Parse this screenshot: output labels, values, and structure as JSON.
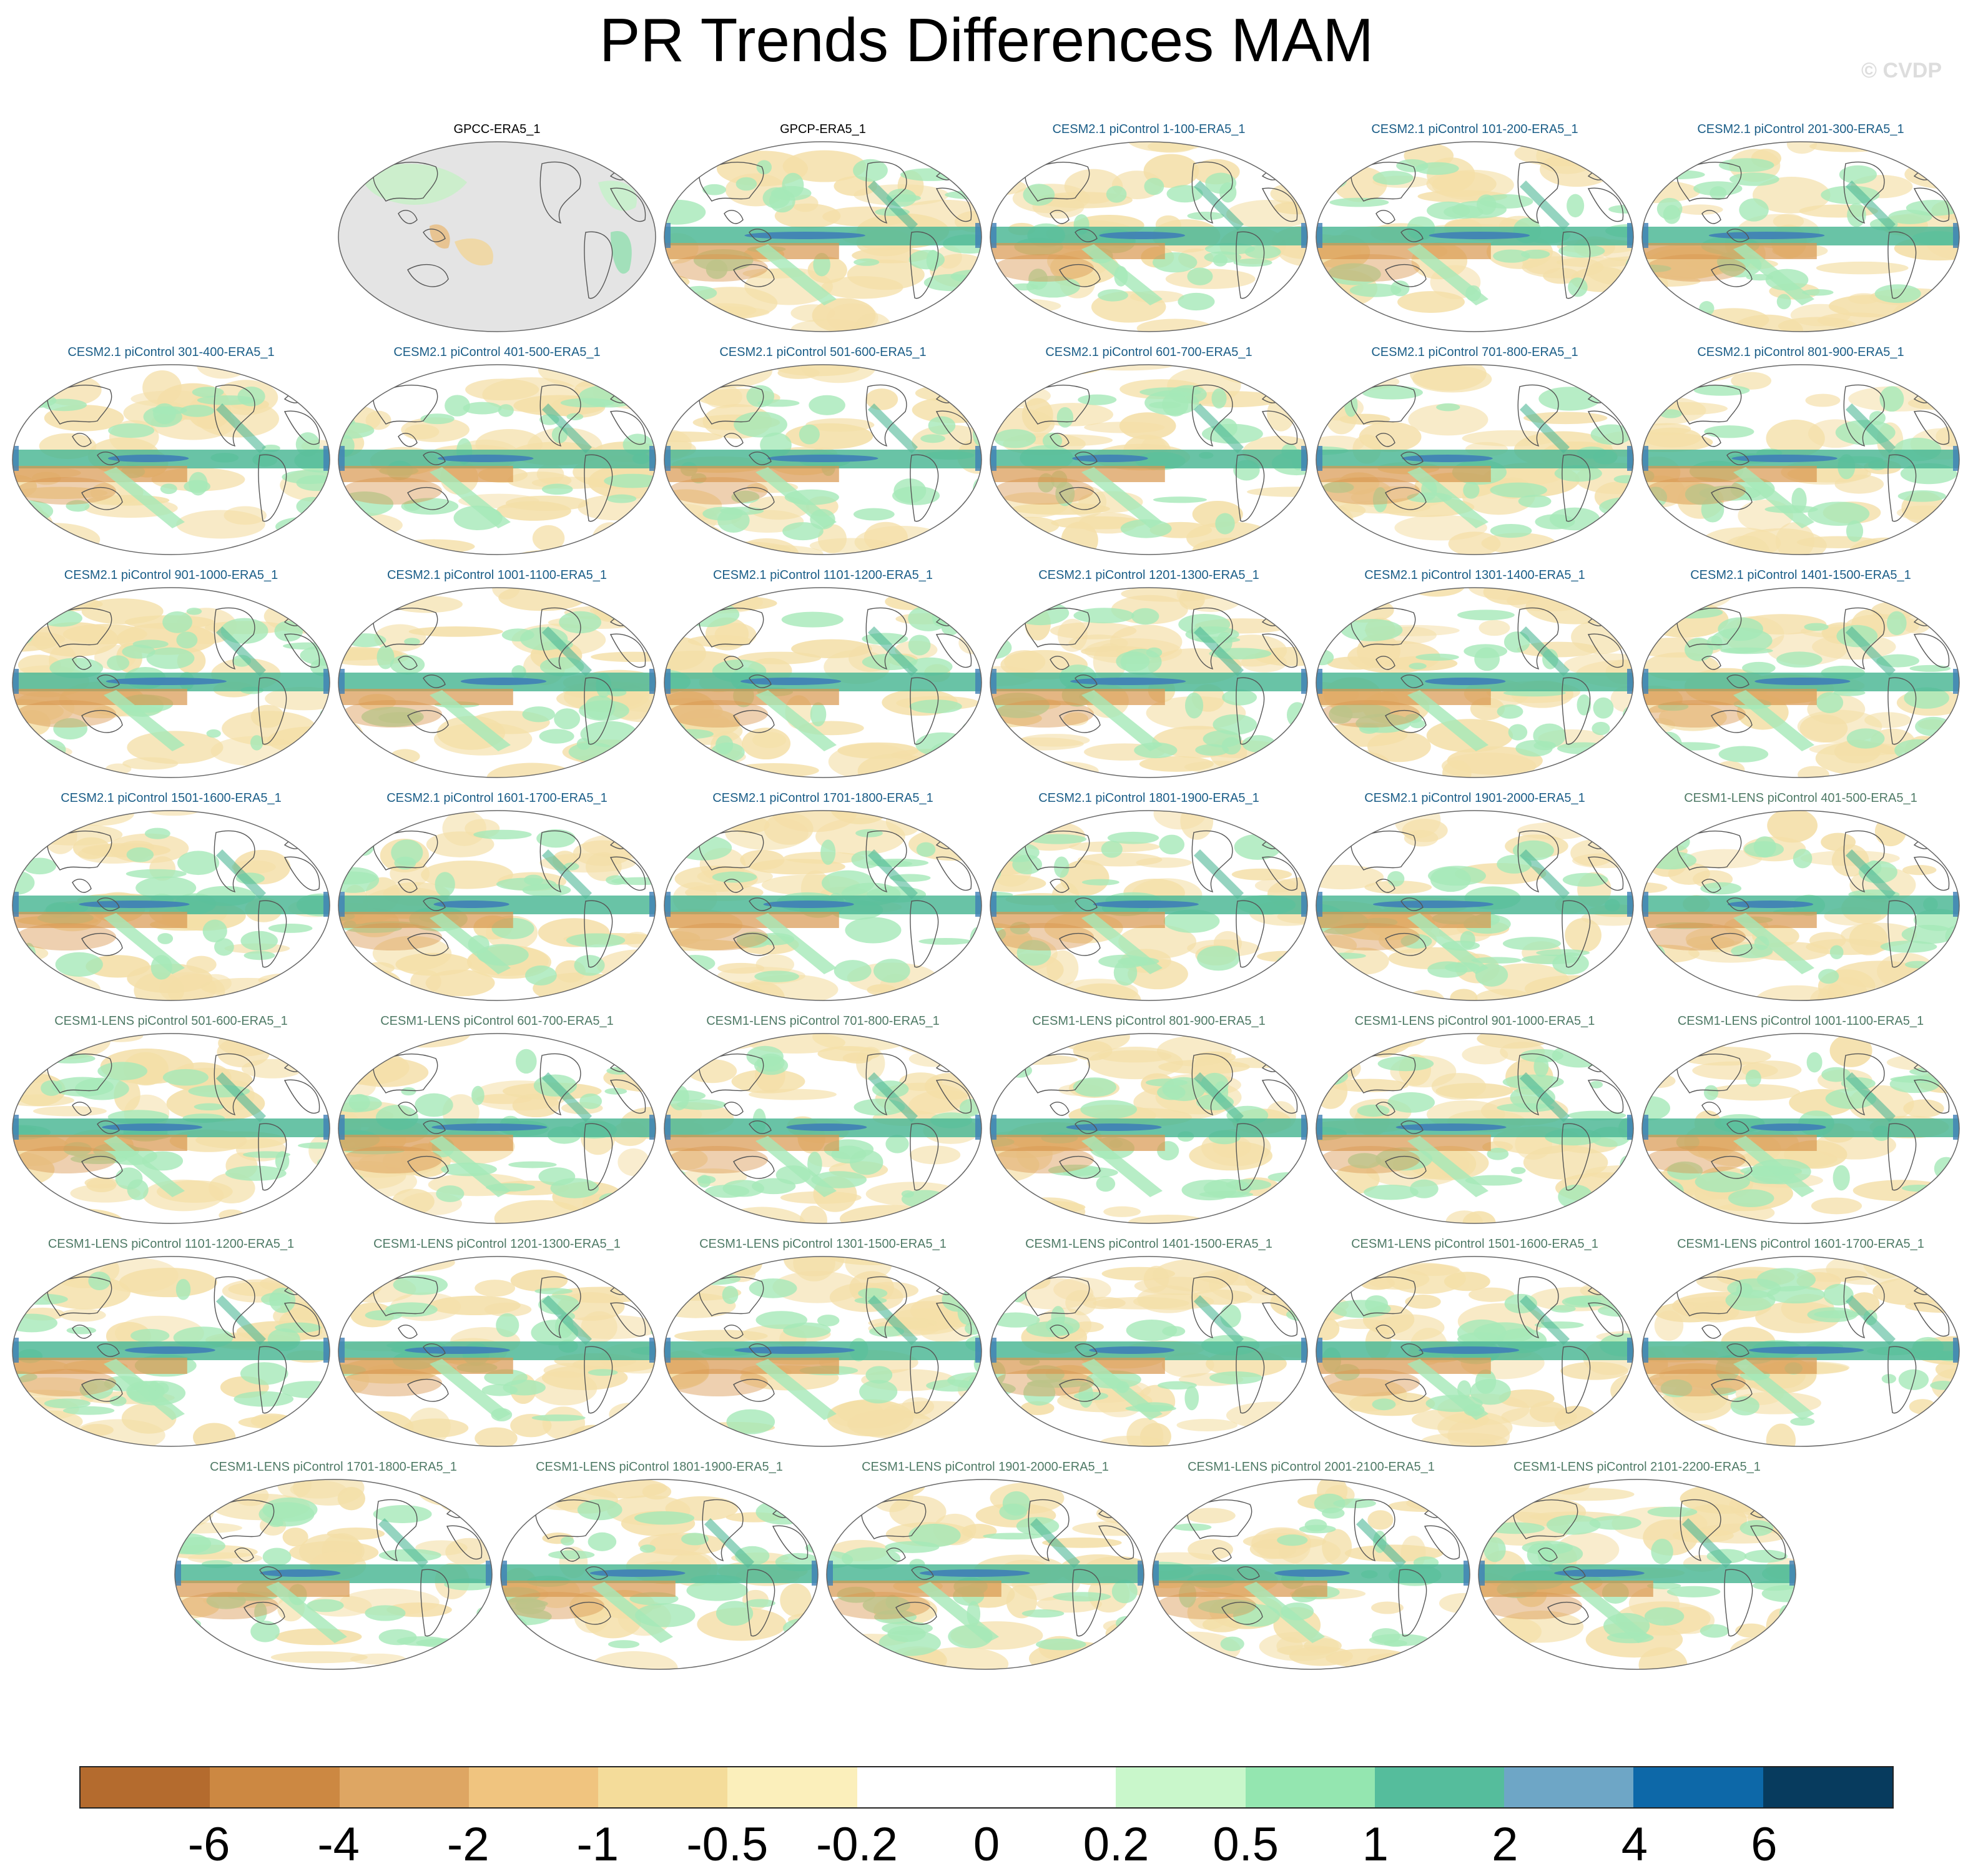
{
  "title": "PR Trends Differences MAM",
  "copyright": "© CVDP",
  "panels": [
    {
      "label": "GPCC-ERA5_1",
      "group": "obs",
      "masked": true
    },
    {
      "label": "GPCP-ERA5_1",
      "group": "obs",
      "masked": false
    },
    {
      "label": "CESM2.1 piControl 1-100-ERA5_1",
      "group": "cesm2"
    },
    {
      "label": "CESM2.1 piControl 101-200-ERA5_1",
      "group": "cesm2"
    },
    {
      "label": "CESM2.1 piControl 201-300-ERA5_1",
      "group": "cesm2"
    },
    {
      "label": "CESM2.1 piControl 301-400-ERA5_1",
      "group": "cesm2"
    },
    {
      "label": "CESM2.1 piControl 401-500-ERA5_1",
      "group": "cesm2"
    },
    {
      "label": "CESM2.1 piControl 501-600-ERA5_1",
      "group": "cesm2"
    },
    {
      "label": "CESM2.1 piControl 601-700-ERA5_1",
      "group": "cesm2"
    },
    {
      "label": "CESM2.1 piControl 701-800-ERA5_1",
      "group": "cesm2"
    },
    {
      "label": "CESM2.1 piControl 801-900-ERA5_1",
      "group": "cesm2"
    },
    {
      "label": "CESM2.1 piControl 901-1000-ERA5_1",
      "group": "cesm2"
    },
    {
      "label": "CESM2.1 piControl 1001-1100-ERA5_1",
      "group": "cesm2"
    },
    {
      "label": "CESM2.1 piControl 1101-1200-ERA5_1",
      "group": "cesm2"
    },
    {
      "label": "CESM2.1 piControl 1201-1300-ERA5_1",
      "group": "cesm2"
    },
    {
      "label": "CESM2.1 piControl 1301-1400-ERA5_1",
      "group": "cesm2"
    },
    {
      "label": "CESM2.1 piControl 1401-1500-ERA5_1",
      "group": "cesm2"
    },
    {
      "label": "CESM2.1 piControl 1501-1600-ERA5_1",
      "group": "cesm2"
    },
    {
      "label": "CESM2.1 piControl 1601-1700-ERA5_1",
      "group": "cesm2"
    },
    {
      "label": "CESM2.1 piControl 1701-1800-ERA5_1",
      "group": "cesm2"
    },
    {
      "label": "CESM2.1 piControl 1801-1900-ERA5_1",
      "group": "cesm2"
    },
    {
      "label": "CESM2.1 piControl 1901-2000-ERA5_1",
      "group": "cesm2"
    },
    {
      "label": "CESM1-LENS piControl 401-500-ERA5_1",
      "group": "cesm1"
    },
    {
      "label": "CESM1-LENS piControl 501-600-ERA5_1",
      "group": "cesm1"
    },
    {
      "label": "CESM1-LENS piControl 601-700-ERA5_1",
      "group": "cesm1"
    },
    {
      "label": "CESM1-LENS piControl 701-800-ERA5_1",
      "group": "cesm1"
    },
    {
      "label": "CESM1-LENS piControl 801-900-ERA5_1",
      "group": "cesm1"
    },
    {
      "label": "CESM1-LENS piControl 901-1000-ERA5_1",
      "group": "cesm1"
    },
    {
      "label": "CESM1-LENS piControl 1001-1100-ERA5_1",
      "group": "cesm1"
    },
    {
      "label": "CESM1-LENS piControl 1101-1200-ERA5_1",
      "group": "cesm1"
    },
    {
      "label": "CESM1-LENS piControl 1201-1300-ERA5_1",
      "group": "cesm1"
    },
    {
      "label": "CESM1-LENS piControl 1301-1500-ERA5_1",
      "group": "cesm1"
    },
    {
      "label": "CESM1-LENS piControl 1401-1500-ERA5_1",
      "group": "cesm1"
    },
    {
      "label": "CESM1-LENS piControl 1501-1600-ERA5_1",
      "group": "cesm1"
    },
    {
      "label": "CESM1-LENS piControl 1601-1700-ERA5_1",
      "group": "cesm1"
    },
    {
      "label": "CESM1-LENS piControl 1701-1800-ERA5_1",
      "group": "cesm1"
    },
    {
      "label": "CESM1-LENS piControl 1801-1900-ERA5_1",
      "group": "cesm1"
    },
    {
      "label": "CESM1-LENS piControl 1901-2000-ERA5_1",
      "group": "cesm1"
    },
    {
      "label": "CESM1-LENS piControl 2001-2100-ERA5_1",
      "group": "cesm1"
    },
    {
      "label": "CESM1-LENS piControl 2101-2200-ERA5_1",
      "group": "cesm1"
    }
  ],
  "title_colors": {
    "obs": "#000000",
    "cesm2": "#1a5d87",
    "cesm1": "#4f7a66"
  },
  "colorbar": {
    "colors": [
      "#b46b2e",
      "#cc8842",
      "#dea663",
      "#f0c47f",
      "#f4dc9a",
      "#fbefbb",
      "#ffffff",
      "#ffffff",
      "#c9f7cb",
      "#94e6b0",
      "#55bd9c",
      "#6ea6c6",
      "#0d68a8",
      "#073b5e"
    ],
    "labels": [
      "-6",
      "-4",
      "-2",
      "-1",
      "-0.5",
      "-0.2",
      "0",
      "0.2",
      "0.5",
      "1",
      "2",
      "4",
      "6"
    ]
  },
  "map_palette": {
    "ocean_dry": "#f4dfa8",
    "dry_strong": "#d9974f",
    "wet_light": "#a5e8b8",
    "wet_mid": "#4fb896",
    "wet_strong": "#3f7fb6",
    "missing": "#e4e4e4",
    "coast": "#555555"
  }
}
